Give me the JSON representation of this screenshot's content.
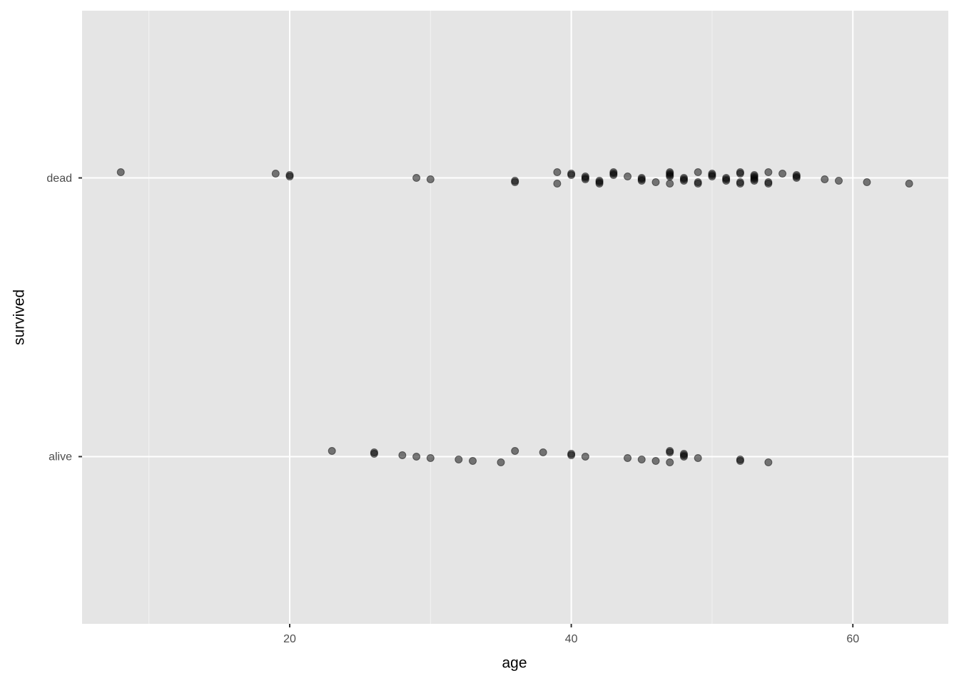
{
  "chart_data": {
    "type": "scatter",
    "x_label": "age",
    "y_label": "survived",
    "ycategories": [
      "alive",
      "dead"
    ],
    "x": [
      8,
      19,
      20,
      20,
      29,
      30,
      36,
      36,
      39,
      39,
      40,
      40,
      41,
      41,
      41,
      42,
      42,
      42,
      43,
      43,
      43,
      44,
      45,
      45,
      45,
      46,
      47,
      47,
      47,
      47,
      47,
      48,
      48,
      48,
      49,
      49,
      49,
      50,
      50,
      50,
      51,
      51,
      51,
      52,
      52,
      52,
      52,
      53,
      53,
      53,
      53,
      53,
      54,
      54,
      54,
      55,
      56,
      56,
      56,
      58,
      59,
      61,
      64,
      23,
      26,
      26,
      28,
      29,
      30,
      32,
      33,
      35,
      36,
      38,
      40,
      40,
      41,
      44,
      45,
      46,
      47,
      47,
      47,
      48,
      48,
      48,
      49,
      52,
      52,
      54
    ],
    "y": [
      "dead",
      "dead",
      "dead",
      "dead",
      "dead",
      "dead",
      "dead",
      "dead",
      "dead",
      "dead",
      "dead",
      "dead",
      "dead",
      "dead",
      "dead",
      "dead",
      "dead",
      "dead",
      "dead",
      "dead",
      "dead",
      "dead",
      "dead",
      "dead",
      "dead",
      "dead",
      "dead",
      "dead",
      "dead",
      "dead",
      "dead",
      "dead",
      "dead",
      "dead",
      "dead",
      "dead",
      "dead",
      "dead",
      "dead",
      "dead",
      "dead",
      "dead",
      "dead",
      "dead",
      "dead",
      "dead",
      "dead",
      "dead",
      "dead",
      "dead",
      "dead",
      "dead",
      "dead",
      "dead",
      "dead",
      "dead",
      "dead",
      "dead",
      "dead",
      "dead",
      "dead",
      "dead",
      "dead",
      "alive",
      "alive",
      "alive",
      "alive",
      "alive",
      "alive",
      "alive",
      "alive",
      "alive",
      "alive",
      "alive",
      "alive",
      "alive",
      "alive",
      "alive",
      "alive",
      "alive",
      "alive",
      "alive",
      "alive",
      "alive",
      "alive",
      "alive",
      "alive",
      "alive",
      "alive",
      "alive"
    ],
    "color": "#000000",
    "xlim": [
      5.25,
      66.78
    ],
    "xticks": [
      20,
      40,
      60
    ],
    "xminorticks": [
      10,
      30,
      50
    ],
    "grid": true
  }
}
